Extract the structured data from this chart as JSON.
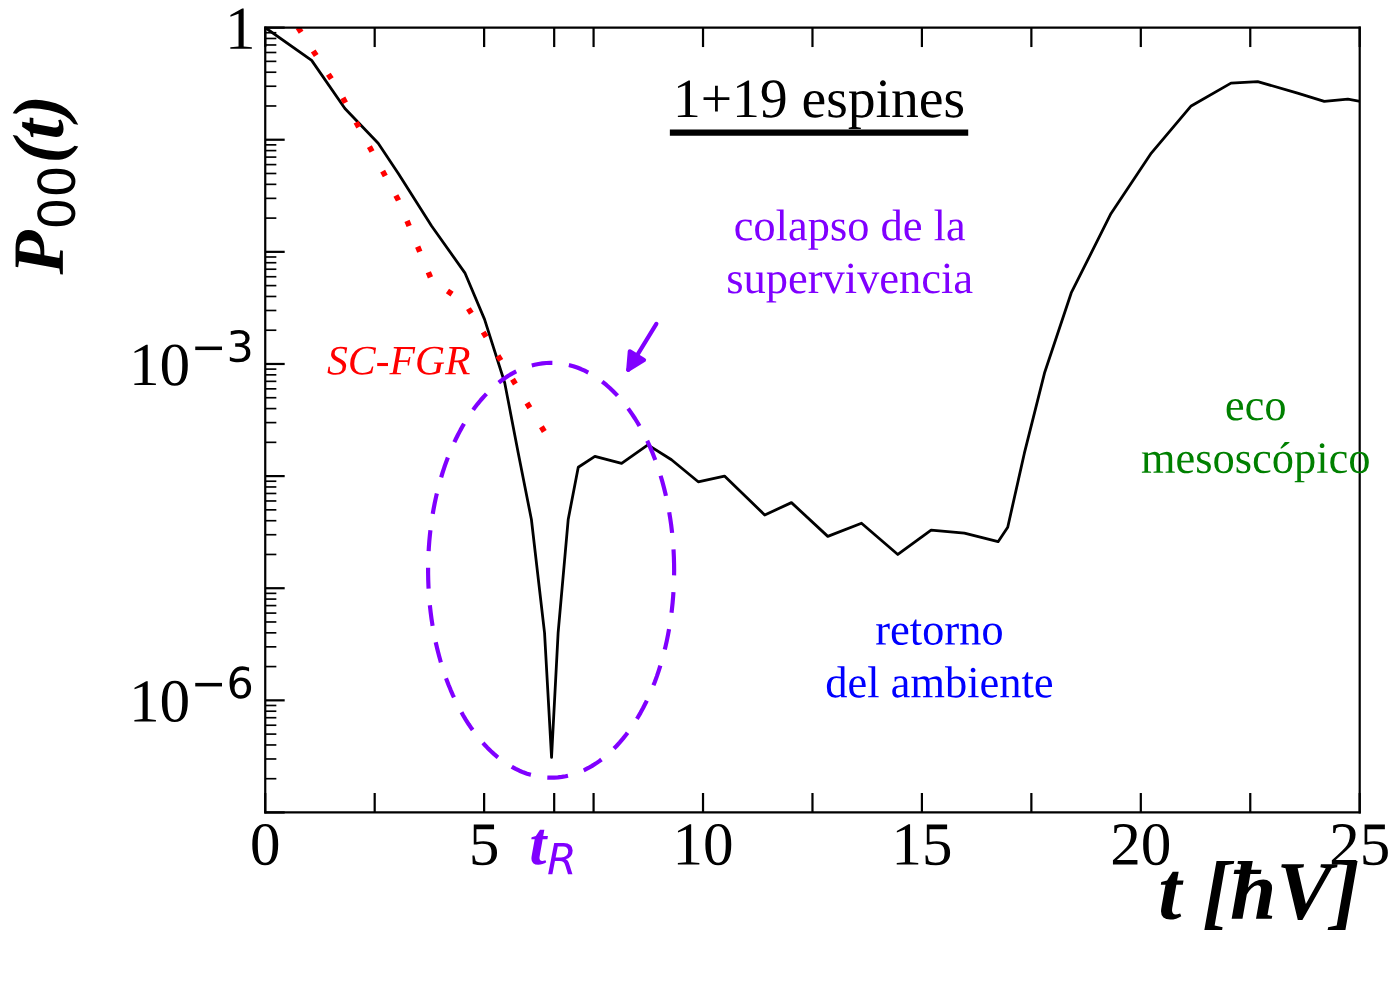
{
  "chart_data": {
    "type": "line",
    "title": "1+19 espines",
    "xlabel": "t [ħV]",
    "ylabel": "P$_{00}$(t)",
    "log": "y",
    "xlim": [
      0,
      25
    ],
    "ylim": [
      1e-07,
      1
    ],
    "xticks": [
      0,
      {
        "value": 2.5,
        "label": null
      },
      5,
      {
        "value": 6.6,
        "label": "t$_{R}$"
      },
      {
        "value": 7.5,
        "label": null
      },
      10,
      {
        "value": 12.5,
        "label": null
      },
      15,
      {
        "value": 17.5,
        "label": null
      },
      20,
      {
        "value": 22.5,
        "label": null
      },
      25
    ],
    "yticks": [
      {
        "value": 1,
        "label": "1"
      },
      {
        "value": 0.1,
        "label": null
      },
      {
        "value": 0.01,
        "label": null
      },
      {
        "value": 0.001,
        "label": "10$^{−3}$"
      },
      {
        "value": 0.0001,
        "label": null
      },
      {
        "value": 1e-05,
        "label": null
      },
      {
        "value": 1e-06,
        "label": "10$^{−6}$"
      },
      {
        "value": 1e-07,
        "label": null
      }
    ],
    "grid": false,
    "legend": false,
    "series": [
      {
        "color": "#000000",
        "line_style": "solid",
        "x": [
          0,
          1.06,
          1.82,
          2.58,
          3.04,
          3.8,
          4.56,
          5.01,
          5.47,
          5.78,
          6.08,
          6.38,
          6.54,
          6.69,
          6.92,
          7.15,
          7.53,
          8.14,
          8.74,
          9.28,
          9.89,
          10.49,
          11.41,
          12.02,
          12.85,
          13.62,
          14.45,
          15.21,
          15.97,
          16.74,
          16.96,
          17.34,
          17.8,
          18.41,
          19.32,
          20.24,
          21.15,
          22.06,
          22.67,
          23.58,
          24.19,
          24.73,
          25
        ],
        "values": [
          1,
          0.51,
          0.19,
          0.093,
          0.05,
          0.017,
          0.0065,
          0.0025,
          0.00068,
          0.00016,
          4.1e-05,
          4e-06,
          3.1e-07,
          4e-06,
          4.1e-05,
          0.00012,
          0.00015,
          0.00013,
          0.00019,
          0.00014,
          8.9e-05,
          0.0001,
          4.5e-05,
          5.8e-05,
          2.9e-05,
          3.8e-05,
          2e-05,
          3.3e-05,
          3.1e-05,
          2.6e-05,
          3.5e-05,
          0.00016,
          0.00083,
          0.0043,
          0.022,
          0.076,
          0.2,
          0.32,
          0.33,
          0.26,
          0.22,
          0.23,
          0.22
        ]
      },
      {
        "color": "#ff0000",
        "line_style": "dotted",
        "x": [
          0.75,
          1.67,
          2.5,
          3.04,
          3.8,
          4.56,
          5.47,
          6.46
        ],
        "values": [
          1,
          0.28,
          0.071,
          0.029,
          0.0056,
          0.0035,
          0.00095,
          0.00022
        ]
      }
    ],
    "annotations": [
      "SC-FGR",
      "colapso de la\nsupervivencia",
      "retorno\ndel ambiente",
      "eco\nmesoscópico"
    ]
  }
}
